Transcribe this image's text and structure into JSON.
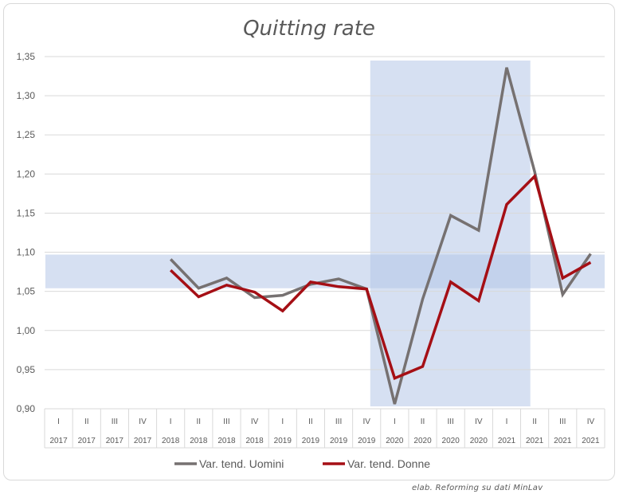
{
  "chart_data": {
    "type": "line",
    "title": "Quitting rate",
    "quarters": [
      "I",
      "II",
      "III",
      "IV",
      "I",
      "II",
      "III",
      "IV",
      "I",
      "II",
      "III",
      "IV",
      "I",
      "II",
      "III",
      "IV",
      "I",
      "II",
      "III",
      "IV"
    ],
    "years": [
      "2017",
      "2017",
      "2017",
      "2017",
      "2018",
      "2018",
      "2018",
      "2018",
      "2019",
      "2019",
      "2019",
      "2019",
      "2020",
      "2020",
      "2020",
      "2020",
      "2021",
      "2021",
      "2021",
      "2021"
    ],
    "y_ticks": [
      "0,90",
      "0,95",
      "1,00",
      "1,05",
      "1,10",
      "1,15",
      "1,20",
      "1,25",
      "1,30",
      "1,35"
    ],
    "ylim": [
      0.9,
      1.35
    ],
    "grid": true,
    "legend_position": "bottom",
    "series": [
      {
        "name": "Var. tend. Uomini",
        "color": "#767171",
        "values": [
          null,
          null,
          null,
          null,
          1.091,
          1.054,
          1.067,
          1.042,
          1.045,
          1.059,
          1.066,
          1.053,
          0.906,
          1.04,
          1.147,
          1.128,
          1.336,
          1.203,
          1.046,
          1.098
        ]
      },
      {
        "name": "Var. tend. Donne",
        "color": "#a50f15",
        "values": [
          null,
          null,
          null,
          null,
          1.077,
          1.043,
          1.058,
          1.049,
          1.025,
          1.062,
          1.056,
          1.053,
          0.939,
          0.954,
          1.062,
          1.038,
          1.161,
          1.197,
          1.067,
          1.087
        ]
      }
    ],
    "highlight_bands": [
      {
        "orientation": "horizontal",
        "y_range": [
          1.054,
          1.097
        ],
        "color": "#b4c7e7"
      },
      {
        "orientation": "vertical",
        "x_range": [
          12,
          17
        ],
        "color": "#b4c7e7"
      }
    ]
  },
  "source_note": "elab. Reforming su dati MinLav"
}
